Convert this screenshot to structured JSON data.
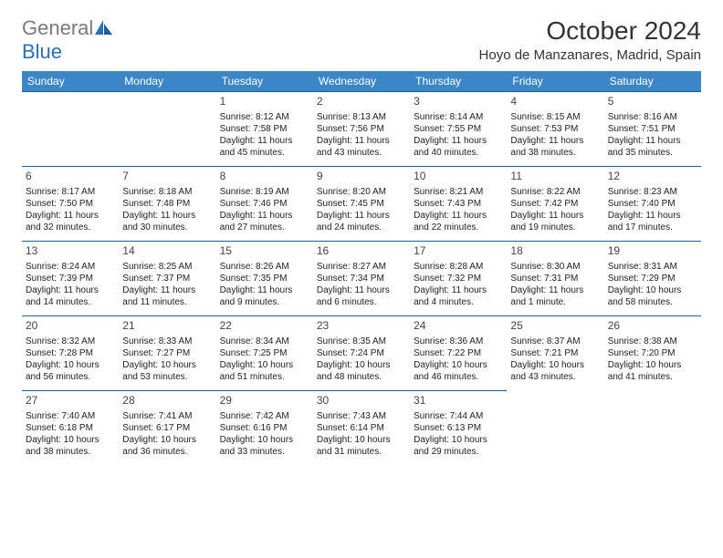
{
  "brand": {
    "text_gray": "General",
    "text_blue": "Blue"
  },
  "title": "October 2024",
  "location": "Hoyo de Manzanares, Madrid, Spain",
  "colors": {
    "header_bg": "#3b86c7",
    "header_text": "#ffffff",
    "row_border": "#1f5c96",
    "logo_gray": "#7a7a7a",
    "logo_blue": "#2a70b8",
    "background": "#ffffff"
  },
  "weekdays": [
    "Sunday",
    "Monday",
    "Tuesday",
    "Wednesday",
    "Thursday",
    "Friday",
    "Saturday"
  ],
  "weeks": [
    [
      null,
      null,
      {
        "day": "1",
        "sunrise": "Sunrise: 8:12 AM",
        "sunset": "Sunset: 7:58 PM",
        "daylight": "Daylight: 11 hours and 45 minutes."
      },
      {
        "day": "2",
        "sunrise": "Sunrise: 8:13 AM",
        "sunset": "Sunset: 7:56 PM",
        "daylight": "Daylight: 11 hours and 43 minutes."
      },
      {
        "day": "3",
        "sunrise": "Sunrise: 8:14 AM",
        "sunset": "Sunset: 7:55 PM",
        "daylight": "Daylight: 11 hours and 40 minutes."
      },
      {
        "day": "4",
        "sunrise": "Sunrise: 8:15 AM",
        "sunset": "Sunset: 7:53 PM",
        "daylight": "Daylight: 11 hours and 38 minutes."
      },
      {
        "day": "5",
        "sunrise": "Sunrise: 8:16 AM",
        "sunset": "Sunset: 7:51 PM",
        "daylight": "Daylight: 11 hours and 35 minutes."
      }
    ],
    [
      {
        "day": "6",
        "sunrise": "Sunrise: 8:17 AM",
        "sunset": "Sunset: 7:50 PM",
        "daylight": "Daylight: 11 hours and 32 minutes."
      },
      {
        "day": "7",
        "sunrise": "Sunrise: 8:18 AM",
        "sunset": "Sunset: 7:48 PM",
        "daylight": "Daylight: 11 hours and 30 minutes."
      },
      {
        "day": "8",
        "sunrise": "Sunrise: 8:19 AM",
        "sunset": "Sunset: 7:46 PM",
        "daylight": "Daylight: 11 hours and 27 minutes."
      },
      {
        "day": "9",
        "sunrise": "Sunrise: 8:20 AM",
        "sunset": "Sunset: 7:45 PM",
        "daylight": "Daylight: 11 hours and 24 minutes."
      },
      {
        "day": "10",
        "sunrise": "Sunrise: 8:21 AM",
        "sunset": "Sunset: 7:43 PM",
        "daylight": "Daylight: 11 hours and 22 minutes."
      },
      {
        "day": "11",
        "sunrise": "Sunrise: 8:22 AM",
        "sunset": "Sunset: 7:42 PM",
        "daylight": "Daylight: 11 hours and 19 minutes."
      },
      {
        "day": "12",
        "sunrise": "Sunrise: 8:23 AM",
        "sunset": "Sunset: 7:40 PM",
        "daylight": "Daylight: 11 hours and 17 minutes."
      }
    ],
    [
      {
        "day": "13",
        "sunrise": "Sunrise: 8:24 AM",
        "sunset": "Sunset: 7:39 PM",
        "daylight": "Daylight: 11 hours and 14 minutes."
      },
      {
        "day": "14",
        "sunrise": "Sunrise: 8:25 AM",
        "sunset": "Sunset: 7:37 PM",
        "daylight": "Daylight: 11 hours and 11 minutes."
      },
      {
        "day": "15",
        "sunrise": "Sunrise: 8:26 AM",
        "sunset": "Sunset: 7:35 PM",
        "daylight": "Daylight: 11 hours and 9 minutes."
      },
      {
        "day": "16",
        "sunrise": "Sunrise: 8:27 AM",
        "sunset": "Sunset: 7:34 PM",
        "daylight": "Daylight: 11 hours and 6 minutes."
      },
      {
        "day": "17",
        "sunrise": "Sunrise: 8:28 AM",
        "sunset": "Sunset: 7:32 PM",
        "daylight": "Daylight: 11 hours and 4 minutes."
      },
      {
        "day": "18",
        "sunrise": "Sunrise: 8:30 AM",
        "sunset": "Sunset: 7:31 PM",
        "daylight": "Daylight: 11 hours and 1 minute."
      },
      {
        "day": "19",
        "sunrise": "Sunrise: 8:31 AM",
        "sunset": "Sunset: 7:29 PM",
        "daylight": "Daylight: 10 hours and 58 minutes."
      }
    ],
    [
      {
        "day": "20",
        "sunrise": "Sunrise: 8:32 AM",
        "sunset": "Sunset: 7:28 PM",
        "daylight": "Daylight: 10 hours and 56 minutes."
      },
      {
        "day": "21",
        "sunrise": "Sunrise: 8:33 AM",
        "sunset": "Sunset: 7:27 PM",
        "daylight": "Daylight: 10 hours and 53 minutes."
      },
      {
        "day": "22",
        "sunrise": "Sunrise: 8:34 AM",
        "sunset": "Sunset: 7:25 PM",
        "daylight": "Daylight: 10 hours and 51 minutes."
      },
      {
        "day": "23",
        "sunrise": "Sunrise: 8:35 AM",
        "sunset": "Sunset: 7:24 PM",
        "daylight": "Daylight: 10 hours and 48 minutes."
      },
      {
        "day": "24",
        "sunrise": "Sunrise: 8:36 AM",
        "sunset": "Sunset: 7:22 PM",
        "daylight": "Daylight: 10 hours and 46 minutes."
      },
      {
        "day": "25",
        "sunrise": "Sunrise: 8:37 AM",
        "sunset": "Sunset: 7:21 PM",
        "daylight": "Daylight: 10 hours and 43 minutes."
      },
      {
        "day": "26",
        "sunrise": "Sunrise: 8:38 AM",
        "sunset": "Sunset: 7:20 PM",
        "daylight": "Daylight: 10 hours and 41 minutes."
      }
    ],
    [
      {
        "day": "27",
        "sunrise": "Sunrise: 7:40 AM",
        "sunset": "Sunset: 6:18 PM",
        "daylight": "Daylight: 10 hours and 38 minutes."
      },
      {
        "day": "28",
        "sunrise": "Sunrise: 7:41 AM",
        "sunset": "Sunset: 6:17 PM",
        "daylight": "Daylight: 10 hours and 36 minutes."
      },
      {
        "day": "29",
        "sunrise": "Sunrise: 7:42 AM",
        "sunset": "Sunset: 6:16 PM",
        "daylight": "Daylight: 10 hours and 33 minutes."
      },
      {
        "day": "30",
        "sunrise": "Sunrise: 7:43 AM",
        "sunset": "Sunset: 6:14 PM",
        "daylight": "Daylight: 10 hours and 31 minutes."
      },
      {
        "day": "31",
        "sunrise": "Sunrise: 7:44 AM",
        "sunset": "Sunset: 6:13 PM",
        "daylight": "Daylight: 10 hours and 29 minutes."
      },
      null,
      null
    ]
  ]
}
